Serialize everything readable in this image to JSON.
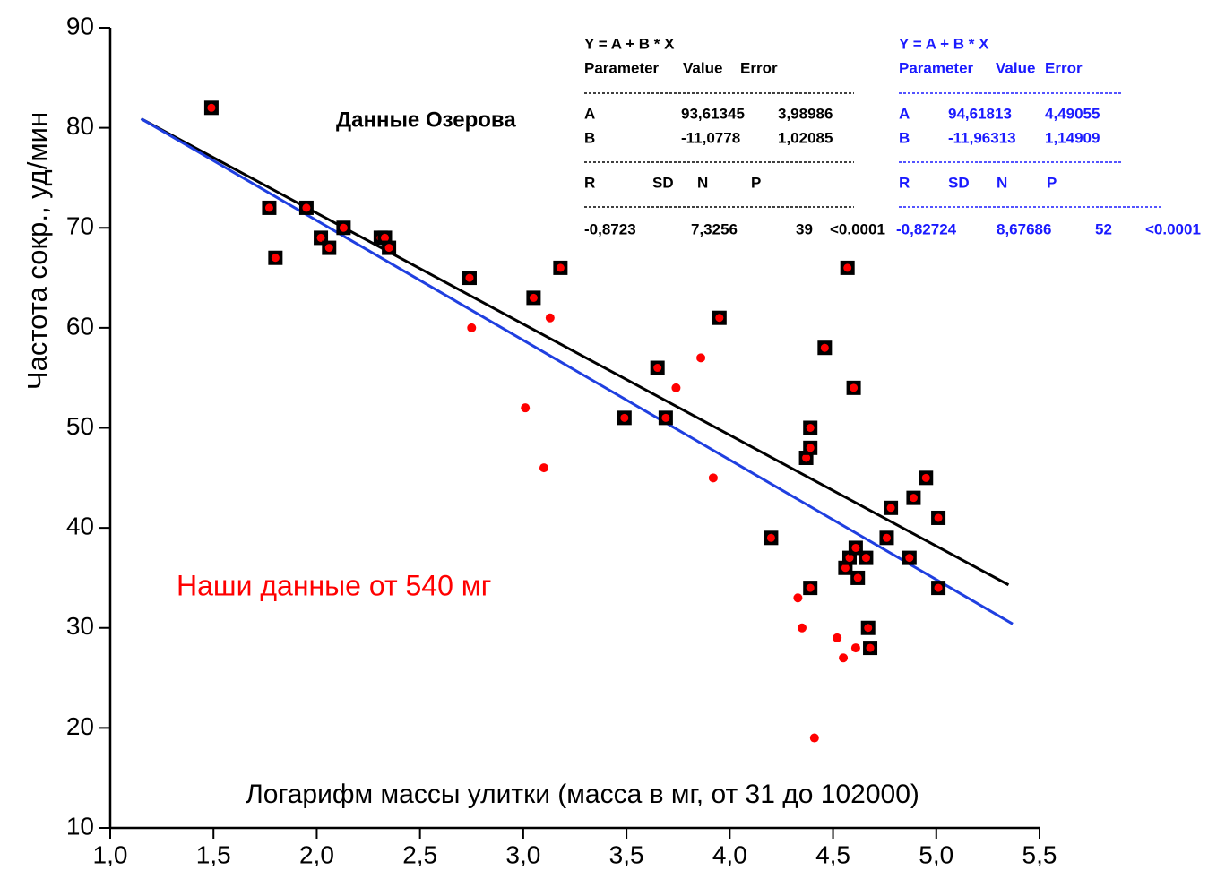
{
  "chart_data": {
    "type": "scatter",
    "x_label": "Логарифм массы улитки (масса в мг, от 31 до 102000)",
    "y_label": "Частота сокр., уд/мин",
    "xlim": [
      1.0,
      5.5
    ],
    "ylim": [
      10,
      90
    ],
    "xticks": [
      {
        "value": 1.0,
        "label": "1,0"
      },
      {
        "value": 1.5,
        "label": "1,5"
      },
      {
        "value": 2.0,
        "label": "2,0"
      },
      {
        "value": 2.5,
        "label": "2,5"
      },
      {
        "value": 3.0,
        "label": "3,0"
      },
      {
        "value": 3.5,
        "label": "3,5"
      },
      {
        "value": 4.0,
        "label": "4,0"
      },
      {
        "value": 4.5,
        "label": "4,5"
      },
      {
        "value": 5.0,
        "label": "5,0"
      },
      {
        "value": 5.5,
        "label": "5,5"
      }
    ],
    "yticks": [
      10,
      20,
      30,
      40,
      50,
      60,
      70,
      80,
      90
    ],
    "series": [
      {
        "name": "Данные Озерова",
        "color": "#000000",
        "marker": "square",
        "x": [
          1.49,
          1.77,
          1.8,
          1.95,
          2.02,
          2.06,
          2.13,
          2.31,
          2.33,
          2.35,
          2.74,
          3.05,
          3.18,
          3.49,
          3.65,
          3.69,
          3.95,
          4.2,
          4.39,
          4.37,
          4.39,
          4.39,
          4.46,
          4.57,
          4.6,
          4.56,
          4.58,
          4.61,
          4.62,
          4.66,
          4.67,
          4.68,
          4.76,
          4.78,
          4.87,
          4.89,
          4.95,
          5.01,
          5.01
        ],
        "values": [
          82,
          72,
          67,
          72,
          69,
          68,
          70,
          69,
          69,
          68,
          65,
          63,
          66,
          51,
          56,
          51,
          61,
          39,
          34,
          47,
          48,
          50,
          58,
          66,
          54,
          36,
          37,
          38,
          35,
          37,
          30,
          28,
          39,
          42,
          37,
          43,
          45,
          34,
          41
        ]
      },
      {
        "name": "Наши данные от 540 мг",
        "color": "#ff0000",
        "marker": "circle",
        "x": [
          2.75,
          3.13,
          3.01,
          3.1,
          3.74,
          3.86,
          3.92,
          4.33,
          4.35,
          4.41,
          4.52,
          4.55,
          4.61
        ],
        "values": [
          60,
          61,
          52,
          46,
          54,
          57,
          45,
          33,
          30,
          19,
          29,
          27,
          28
        ]
      },
      {
        "type": "line",
        "color": "#000000",
        "x": [
          1.15,
          5.35
        ],
        "values": [
          80.9,
          34.3
        ]
      },
      {
        "type": "line",
        "color": "#1f3fe0",
        "x": [
          1.15,
          5.37
        ],
        "values": [
          80.9,
          30.4
        ]
      }
    ],
    "fit_tables": [
      {
        "color": "#000000",
        "equation": "Y = A + B * X",
        "header": [
          "Parameter",
          "Value",
          "Error"
        ],
        "rows": [
          [
            "A",
            "93,61345",
            "3,98986"
          ],
          [
            "B",
            "-11,0778",
            "1,02085"
          ]
        ],
        "stats_header": [
          "R",
          "SD",
          "N",
          "P"
        ],
        "stats": [
          "-0,8723",
          "7,3256",
          "39",
          "<0.0001"
        ]
      },
      {
        "color": "#1a1aff",
        "equation": "Y = A + B * X",
        "header": [
          "Parameter",
          "Value",
          "Error"
        ],
        "rows": [
          [
            "A",
            "94,61813",
            "4,49055"
          ],
          [
            "B",
            "-11,96313",
            "1,14909"
          ]
        ],
        "stats_header": [
          "R",
          "SD",
          "N",
          "P"
        ],
        "stats": [
          "-0,82724",
          "8,67686",
          "52",
          "<0.0001"
        ]
      }
    ]
  }
}
